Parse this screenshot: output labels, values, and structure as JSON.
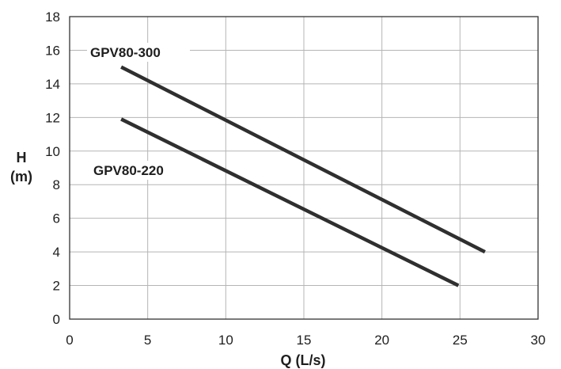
{
  "chart_data": {
    "type": "line",
    "title": "",
    "xlabel": "Q (L/s)",
    "ylabel_line1": "H",
    "ylabel_line2": "(m)",
    "xlim": [
      0,
      30
    ],
    "ylim": [
      0,
      18
    ],
    "xticks": [
      0,
      5,
      10,
      15,
      20,
      25,
      30
    ],
    "yticks": [
      0,
      2,
      4,
      6,
      8,
      10,
      12,
      14,
      16,
      18
    ],
    "grid": true,
    "legend": "none",
    "series": [
      {
        "name": "GPV80-300",
        "x": [
          3.3,
          26.6
        ],
        "y": [
          15.0,
          4.0
        ]
      },
      {
        "name": "GPV80-220",
        "x": [
          3.3,
          24.9
        ],
        "y": [
          11.9,
          2.0
        ]
      }
    ],
    "colors": {
      "line": "#2f2f2f",
      "grid": "#b5b5b5",
      "frame": "#333333",
      "text": "#1e1e1e"
    }
  }
}
